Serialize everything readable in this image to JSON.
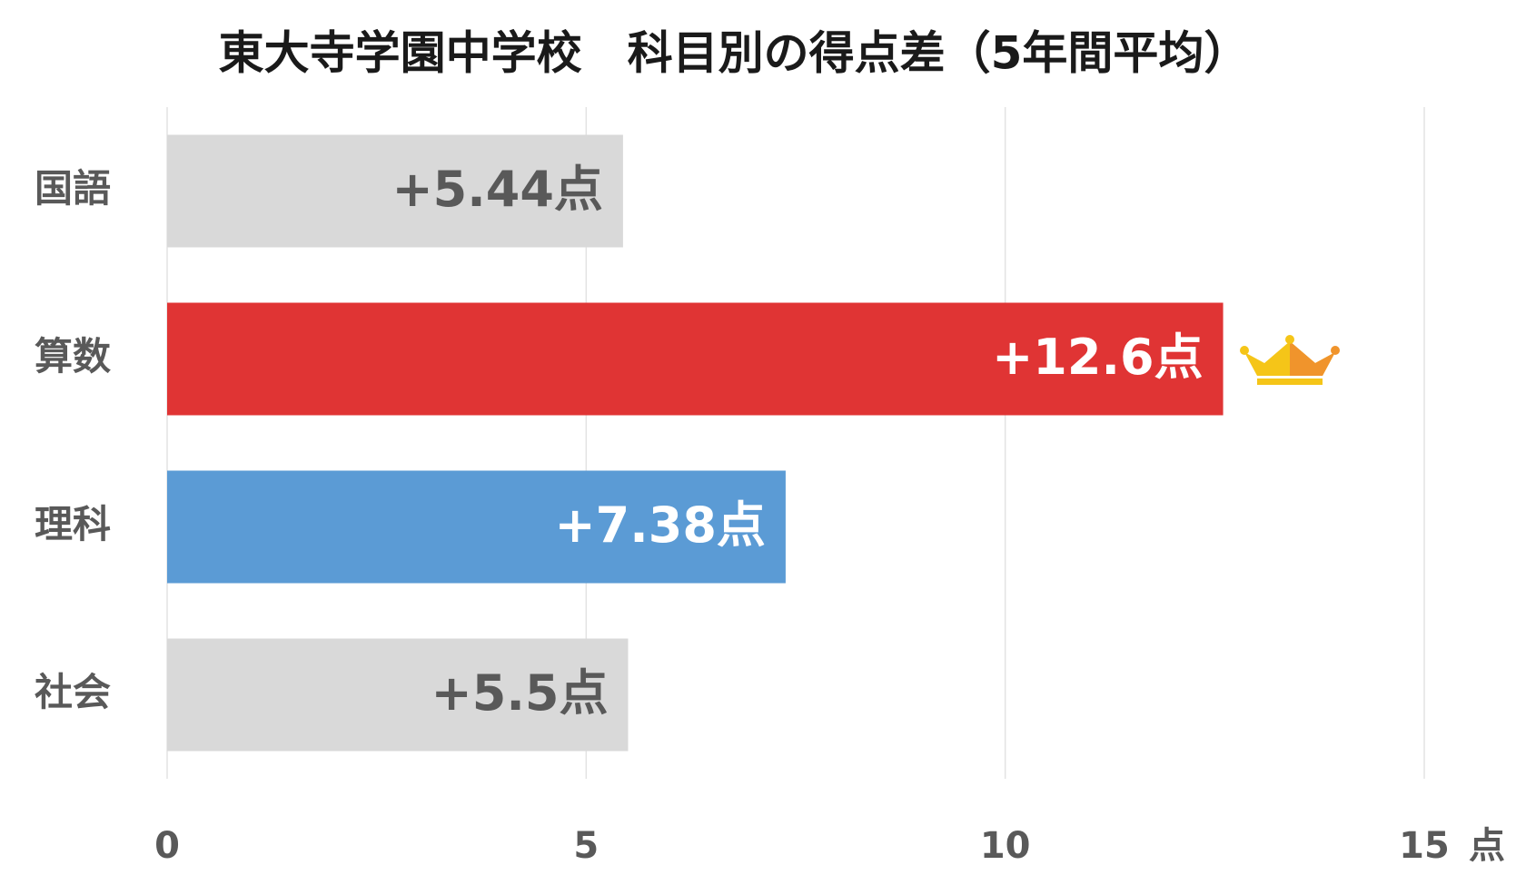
{
  "chart_data": {
    "type": "barh",
    "title": "東大寺学園中学校　科目別の得点差（5年間平均）",
    "categories": [
      "国語",
      "算数",
      "理科",
      "社会"
    ],
    "values": [
      5.44,
      12.6,
      7.38,
      5.5
    ],
    "value_labels": [
      "+5.44点",
      "+12.6点",
      "+7.38点",
      "+5.5点"
    ],
    "colors": [
      "#d9d9d9",
      "#e03434",
      "#5b9bd5",
      "#d9d9d9"
    ],
    "label_colors": [
      "#595959",
      "#ffffff",
      "#ffffff",
      "#595959"
    ],
    "xlim": [
      0,
      15
    ],
    "xticks": [
      0,
      5,
      10,
      15
    ],
    "x_unit": "点",
    "grid": true
  }
}
